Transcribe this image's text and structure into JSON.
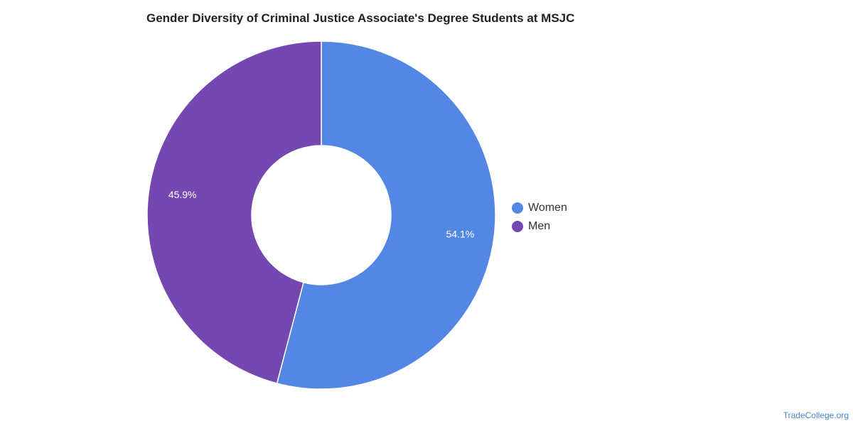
{
  "chart_data": {
    "type": "pie",
    "variant": "donut",
    "title": "Gender Diversity of Criminal Justice Associate's Degree Students at MSJC",
    "slices": [
      {
        "name": "Women",
        "value": 54.1,
        "label": "54.1%",
        "color": "#5387e3"
      },
      {
        "name": "Men",
        "value": 45.9,
        "label": "45.9%",
        "color": "#7547b1"
      }
    ],
    "legend_position": "right"
  },
  "footer": {
    "source": "TradeCollege.org"
  }
}
